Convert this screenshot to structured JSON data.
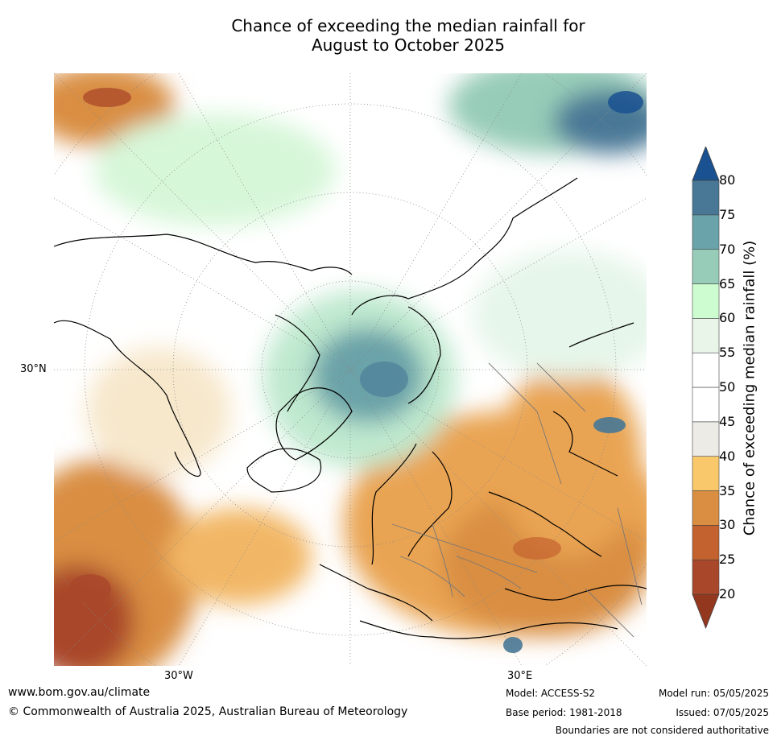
{
  "title_line1": "Chance of exceeding the median rainfall for",
  "title_line2": "August to October 2025",
  "lat_label": "30°N",
  "lon_labels": [
    "30°W",
    "30°E"
  ],
  "colorbar": {
    "label": "Chance of exceeding median rainfall (%)",
    "ticks": [
      "80",
      "75",
      "70",
      "65",
      "60",
      "55",
      "50",
      "45",
      "40",
      "35",
      "30",
      "25",
      "20"
    ],
    "colors": [
      "#93381f",
      "#a9472a",
      "#c4622f",
      "#d98e42",
      "#f9c86a",
      "#ecebe6",
      "#ffffff",
      "#ffffff",
      "#eaf5ea",
      "#ccfccf",
      "#97ccb8",
      "#6aa3a9",
      "#487896",
      "#1a5190"
    ]
  },
  "footer": {
    "website": "www.bom.gov.au/climate",
    "copyright": "© Commonwealth of Australia 2025, Australian Bureau of Meteorology",
    "model": "Model: ACCESS-S2",
    "base_period": "Base period: 1981-2018",
    "model_run": "Model run: 05/05/2025",
    "issued": "Issued: 07/05/2025",
    "disclaimer": "Boundaries are not considered authoritative"
  }
}
